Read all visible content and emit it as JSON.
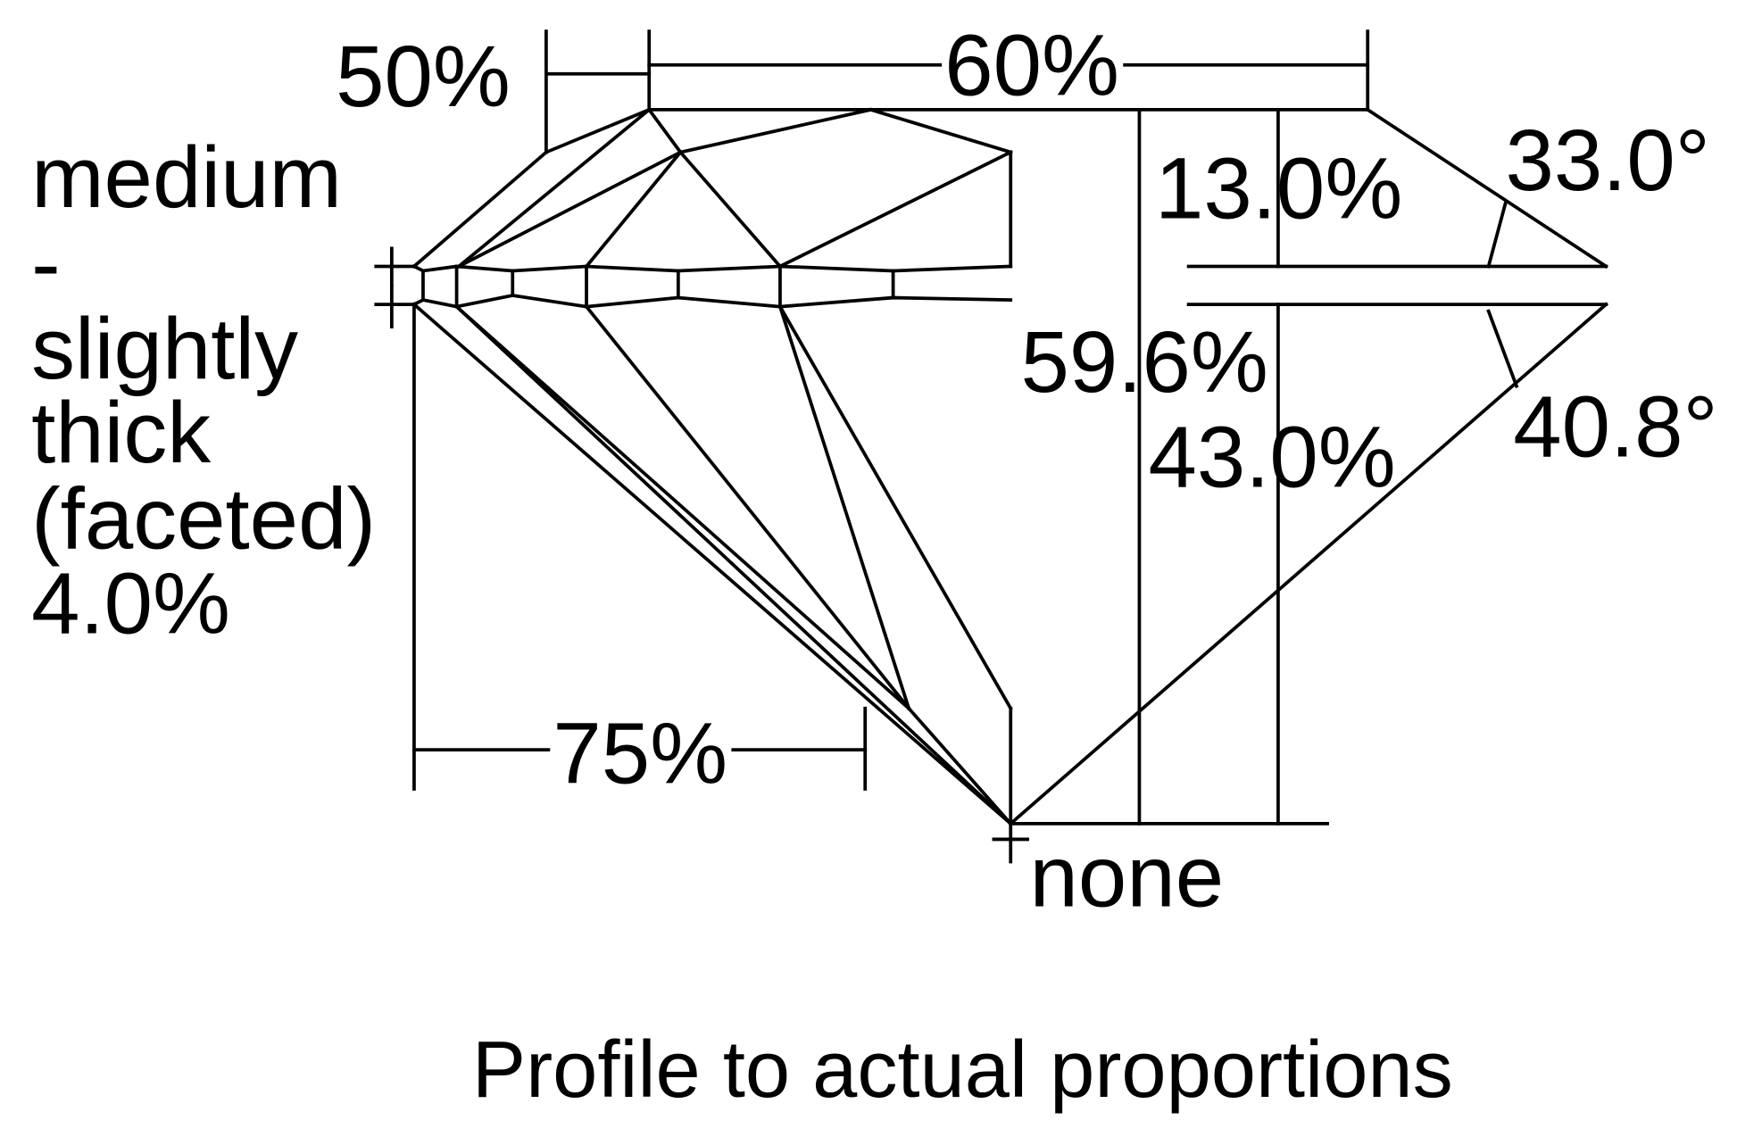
{
  "diagram": {
    "title": "Profile to actual proportions",
    "girdle_label": [
      "medium",
      "-",
      "slightly",
      "thick",
      "(faceted)",
      "4.0%"
    ],
    "star_length": "50%",
    "table": "60%",
    "crown_height": "13.0%",
    "crown_angle": "33.0°",
    "total_depth": "59.6%",
    "pavilion_depth": "43.0%",
    "pavilion_angle": "40.8°",
    "lower_half_length": "75%",
    "culet": "none",
    "line_color": "#000000",
    "background": "#ffffff"
  }
}
